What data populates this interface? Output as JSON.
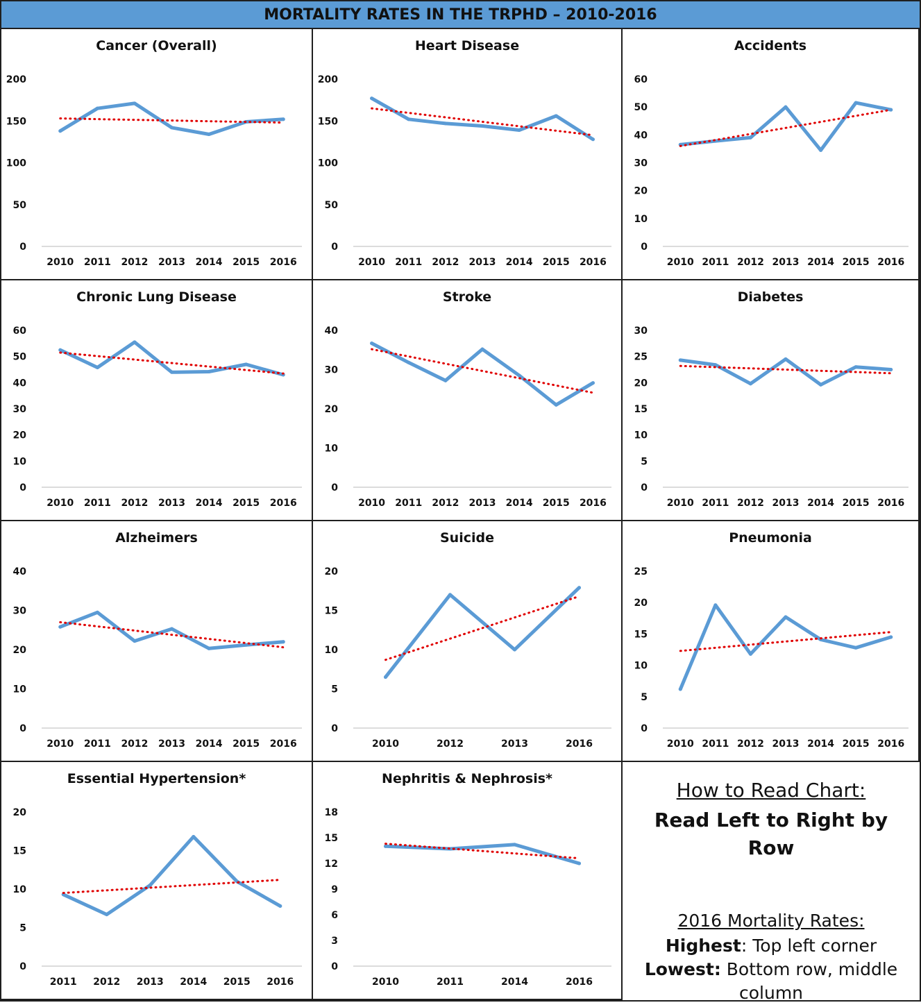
{
  "header": {
    "title": "MORTALITY RATES IN THE TRPHD – 2010-2016"
  },
  "colors": {
    "series": "#5b9bd5",
    "trendline": "#e00000",
    "banner": "#5b9bd5"
  },
  "chart_data": [
    {
      "type": "line",
      "title": "Cancer (Overall)",
      "categories": [
        "2010",
        "2011",
        "2012",
        "2013",
        "2014",
        "2015",
        "2016"
      ],
      "values": [
        138,
        165,
        171,
        142,
        134,
        149,
        152
      ],
      "trend": [
        153,
        148
      ],
      "ylim": [
        0,
        200
      ],
      "yticks": [
        0,
        50,
        100,
        150,
        200
      ]
    },
    {
      "type": "line",
      "title": "Heart Disease",
      "categories": [
        "2010",
        "2011",
        "2012",
        "2013",
        "2014",
        "2015",
        "2016"
      ],
      "values": [
        177,
        152,
        147,
        144,
        139,
        156,
        128
      ],
      "trend": [
        165,
        133
      ],
      "ylim": [
        0,
        200
      ],
      "yticks": [
        0,
        50,
        100,
        150,
        200
      ]
    },
    {
      "type": "line",
      "title": "Accidents",
      "categories": [
        "2010",
        "2011",
        "2012",
        "2013",
        "2014",
        "2015",
        "2016"
      ],
      "values": [
        36.5,
        37.8,
        39,
        50,
        34.5,
        51.5,
        49
      ],
      "trend": [
        36,
        49
      ],
      "ylim": [
        0,
        60
      ],
      "yticks": [
        0,
        10,
        20,
        30,
        40,
        50,
        60
      ]
    },
    {
      "type": "line",
      "title": "Chronic Lung Disease",
      "categories": [
        "2010",
        "2011",
        "2012",
        "2013",
        "2014",
        "2015",
        "2016"
      ],
      "values": [
        52.5,
        45.8,
        55.5,
        44,
        44.2,
        47,
        43
      ],
      "trend": [
        51.5,
        43.5
      ],
      "ylim": [
        0,
        60
      ],
      "yticks": [
        0,
        10,
        20,
        30,
        40,
        50,
        60
      ]
    },
    {
      "type": "line",
      "title": "Stroke",
      "categories": [
        "2010",
        "2011",
        "2012",
        "2013",
        "2014",
        "2015",
        "2016"
      ],
      "values": [
        36.7,
        31.8,
        27.2,
        35.2,
        28.5,
        21,
        26.6
      ],
      "trend": [
        35.2,
        24.1
      ],
      "ylim": [
        0,
        40
      ],
      "yticks": [
        0,
        10,
        20,
        30,
        40
      ]
    },
    {
      "type": "line",
      "title": "Diabetes",
      "categories": [
        "2010",
        "2011",
        "2012",
        "2013",
        "2014",
        "2015",
        "2016"
      ],
      "values": [
        24.3,
        23.4,
        19.8,
        24.5,
        19.6,
        23,
        22.5
      ],
      "trend": [
        23.2,
        21.8
      ],
      "ylim": [
        0,
        30
      ],
      "yticks": [
        0,
        5,
        10,
        15,
        20,
        25,
        30
      ]
    },
    {
      "type": "line",
      "title": "Alzheimers",
      "categories": [
        "2010",
        "2011",
        "2012",
        "2013",
        "2014",
        "2015",
        "2016"
      ],
      "values": [
        25.8,
        29.5,
        22.2,
        25.3,
        20.3,
        21.2,
        22
      ],
      "trend": [
        27,
        20.6
      ],
      "ylim": [
        0,
        40
      ],
      "yticks": [
        0,
        10,
        20,
        30,
        40
      ]
    },
    {
      "type": "line",
      "title": "Suicide",
      "categories": [
        "2010",
        "2012",
        "2013",
        "2016"
      ],
      "values": [
        6.5,
        17,
        10,
        17.9
      ],
      "trend": [
        8.7,
        16.8
      ],
      "ylim": [
        0,
        20
      ],
      "yticks": [
        0,
        5,
        10,
        15,
        20
      ]
    },
    {
      "type": "line",
      "title": "Pneumonia",
      "categories": [
        "2010",
        "2011",
        "2012",
        "2013",
        "2014",
        "2015",
        "2016"
      ],
      "values": [
        6.2,
        19.6,
        11.8,
        17.7,
        14.1,
        12.8,
        14.5
      ],
      "trend": [
        12.3,
        15.3
      ],
      "ylim": [
        0,
        25
      ],
      "yticks": [
        0,
        5,
        10,
        15,
        20,
        25
      ]
    },
    {
      "type": "line",
      "title": "Essential Hypertension*",
      "categories": [
        "2011",
        "2012",
        "2013",
        "2014",
        "2015",
        "2016"
      ],
      "values": [
        9.3,
        6.7,
        10.5,
        16.8,
        11,
        7.8
      ],
      "trend": [
        9.5,
        11.2
      ],
      "ylim": [
        0,
        20
      ],
      "yticks": [
        0,
        5,
        10,
        15,
        20
      ]
    },
    {
      "type": "line",
      "title": "Nephritis & Nephrosis*",
      "categories": [
        "2010",
        "2011",
        "2014",
        "2016"
      ],
      "values": [
        14,
        13.7,
        14.2,
        12
      ],
      "trend": [
        14.3,
        12.6
      ],
      "ylim": [
        0,
        18
      ],
      "yticks": [
        0,
        3,
        6,
        9,
        12,
        15,
        18
      ]
    }
  ],
  "legend_box": {
    "heading": "How to Read Chart:",
    "instruction": "Read Left to Right by Row",
    "rates_heading": "2016 Mortality Rates:",
    "highest_label": "Highest",
    "highest_text": ": Top left corner",
    "lowest_label": "Lowest:",
    "lowest_text": " Bottom row, middle",
    "lowest_text2": "column"
  }
}
